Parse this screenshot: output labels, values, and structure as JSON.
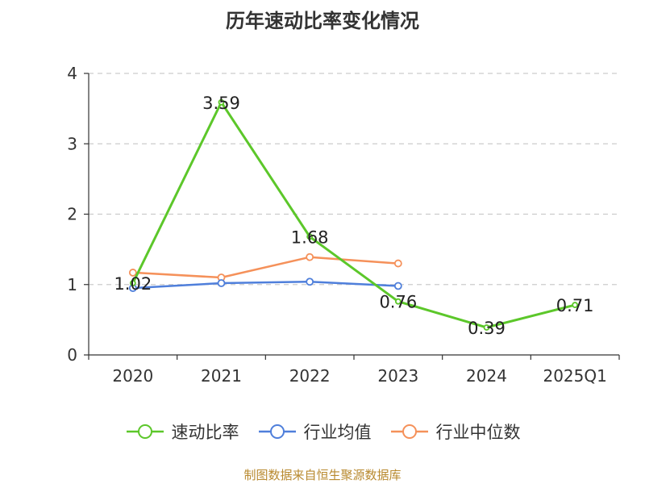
{
  "chart_data": {
    "type": "line",
    "title": "历年速动比率变化情况",
    "categories": [
      "2020",
      "2021",
      "2022",
      "2023",
      "2024",
      "2025Q1"
    ],
    "ylim": [
      0,
      4
    ],
    "yticks": [
      0,
      1,
      2,
      3,
      4
    ],
    "grid": true,
    "legend_position": "bottom",
    "series": [
      {
        "name": "速动比率",
        "color": "#5cc72a",
        "values": [
          1.02,
          3.59,
          1.68,
          0.76,
          0.39,
          0.71
        ],
        "labels": [
          "1.02",
          "3.59",
          "1.68",
          "0.76",
          "0.39",
          "0.71"
        ]
      },
      {
        "name": "行业均值",
        "color": "#4f7fdb",
        "values": [
          0.95,
          1.02,
          1.04,
          0.98,
          null,
          null
        ]
      },
      {
        "name": "行业中位数",
        "color": "#f5915a",
        "values": [
          1.17,
          1.1,
          1.39,
          1.3,
          null,
          null
        ]
      }
    ]
  },
  "source": "制图数据来自恒生聚源数据库"
}
